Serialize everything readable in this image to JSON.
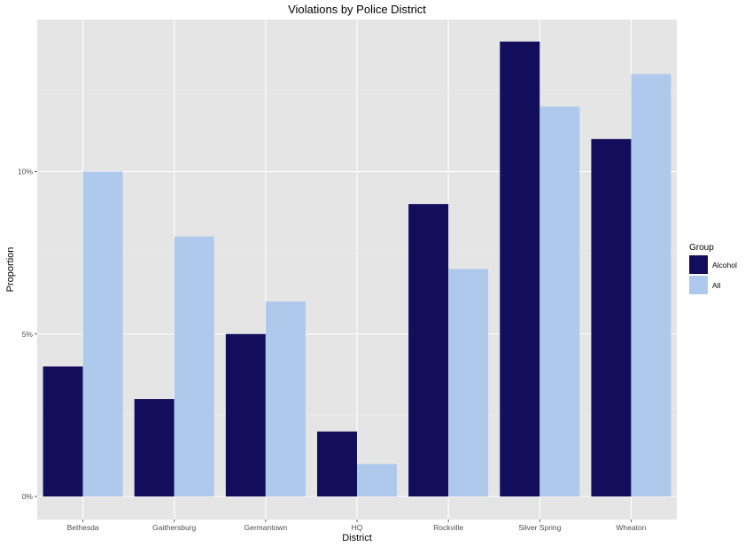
{
  "chart_data": {
    "type": "bar",
    "title": "Violations by Police District",
    "xlabel": "District",
    "ylabel": "Proportion",
    "categories": [
      "Bethesda",
      "Gaithersburg",
      "Germantown",
      "HQ",
      "Rockville",
      "Silver Spring",
      "Wheaton"
    ],
    "series": [
      {
        "name": "Alcohol",
        "color": "#120e5c",
        "values": [
          4,
          3,
          5,
          2,
          9,
          14,
          11
        ]
      },
      {
        "name": "All",
        "color": "#aec9ec",
        "values": [
          10,
          8,
          6,
          1,
          7,
          12,
          13
        ]
      }
    ],
    "value_unit": "%",
    "ylim": [
      0,
      14.7
    ],
    "yticks": [
      0,
      5,
      10
    ],
    "ytick_labels": [
      "0%",
      "5%",
      "10%"
    ],
    "grid": true,
    "panel_background": "#e5e5e5",
    "legend": {
      "title": "Group",
      "placement": "right"
    }
  }
}
